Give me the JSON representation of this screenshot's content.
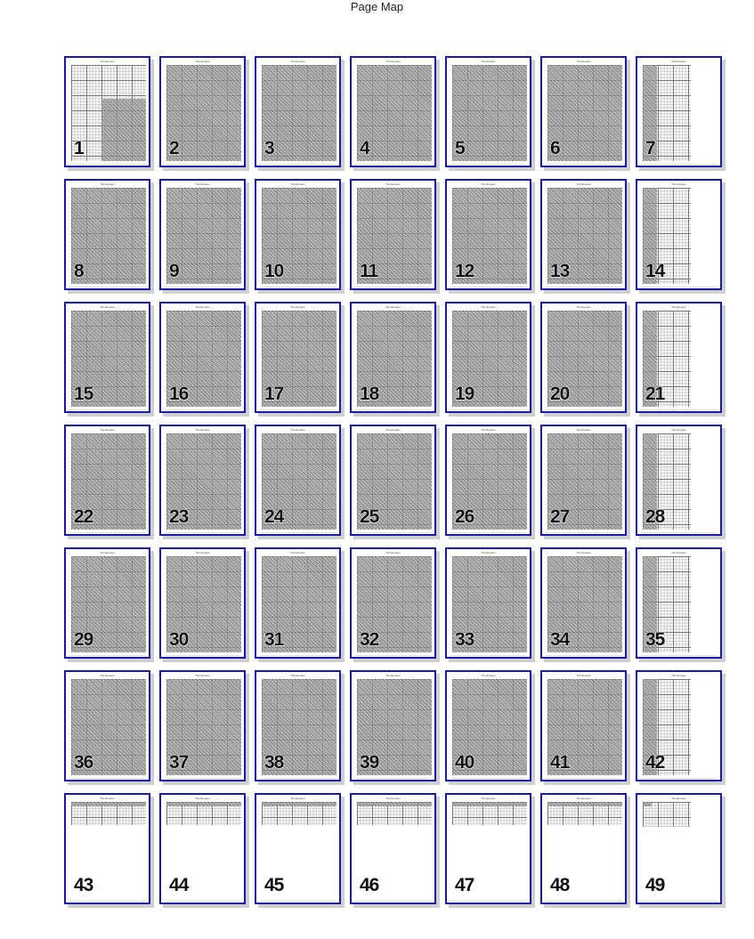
{
  "header": {
    "title": "Page Map"
  },
  "pattern_title": "The Rooster",
  "columns": 7,
  "pages": [
    {
      "number": "1",
      "coverage": "lower-right"
    },
    {
      "number": "2",
      "coverage": "full"
    },
    {
      "number": "3",
      "coverage": "full"
    },
    {
      "number": "4",
      "coverage": "full"
    },
    {
      "number": "5",
      "coverage": "full"
    },
    {
      "number": "6",
      "coverage": "full"
    },
    {
      "number": "7",
      "coverage": "left-strip"
    },
    {
      "number": "8",
      "coverage": "full"
    },
    {
      "number": "9",
      "coverage": "full"
    },
    {
      "number": "10",
      "coverage": "full"
    },
    {
      "number": "11",
      "coverage": "full"
    },
    {
      "number": "12",
      "coverage": "full"
    },
    {
      "number": "13",
      "coverage": "full"
    },
    {
      "number": "14",
      "coverage": "left-strip"
    },
    {
      "number": "15",
      "coverage": "full"
    },
    {
      "number": "16",
      "coverage": "full"
    },
    {
      "number": "17",
      "coverage": "full"
    },
    {
      "number": "18",
      "coverage": "full"
    },
    {
      "number": "19",
      "coverage": "full"
    },
    {
      "number": "20",
      "coverage": "full"
    },
    {
      "number": "21",
      "coverage": "left-strip"
    },
    {
      "number": "22",
      "coverage": "full"
    },
    {
      "number": "23",
      "coverage": "full"
    },
    {
      "number": "24",
      "coverage": "full"
    },
    {
      "number": "25",
      "coverage": "full"
    },
    {
      "number": "26",
      "coverage": "full"
    },
    {
      "number": "27",
      "coverage": "full"
    },
    {
      "number": "28",
      "coverage": "left-strip"
    },
    {
      "number": "29",
      "coverage": "full"
    },
    {
      "number": "30",
      "coverage": "full"
    },
    {
      "number": "31",
      "coverage": "full"
    },
    {
      "number": "32",
      "coverage": "full"
    },
    {
      "number": "33",
      "coverage": "full"
    },
    {
      "number": "34",
      "coverage": "full"
    },
    {
      "number": "35",
      "coverage": "left-strip"
    },
    {
      "number": "36",
      "coverage": "full"
    },
    {
      "number": "37",
      "coverage": "full"
    },
    {
      "number": "38",
      "coverage": "full"
    },
    {
      "number": "39",
      "coverage": "full"
    },
    {
      "number": "40",
      "coverage": "full"
    },
    {
      "number": "41",
      "coverage": "full"
    },
    {
      "number": "42",
      "coverage": "left-strip"
    },
    {
      "number": "43",
      "coverage": "top-strip"
    },
    {
      "number": "44",
      "coverage": "top-strip"
    },
    {
      "number": "45",
      "coverage": "top-strip"
    },
    {
      "number": "46",
      "coverage": "top-strip"
    },
    {
      "number": "47",
      "coverage": "top-strip"
    },
    {
      "number": "48",
      "coverage": "top-strip"
    },
    {
      "number": "49",
      "coverage": "top-corner"
    }
  ],
  "colors": {
    "border": "#1a1aa8",
    "shadow": "#cfcfcf"
  }
}
